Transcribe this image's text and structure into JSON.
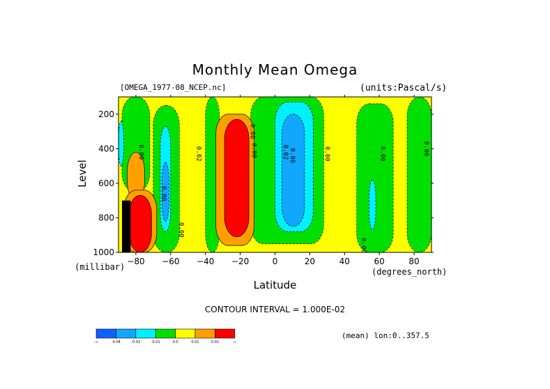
{
  "chart_data": {
    "type": "heatmap",
    "title": "Monthly Mean Omega",
    "file_label": "[OMEGA_1977-08_NCEP.nc]",
    "units_label": "(units:Pascal/s)",
    "xlabel": "Latitude",
    "x_units": "(degrees_north)",
    "ylabel": "Level",
    "y_units": "(millibar)",
    "xlim": [
      -90,
      90
    ],
    "ylim": [
      1000,
      100
    ],
    "x_ticks": [
      -80,
      -60,
      -40,
      -20,
      0,
      20,
      40,
      60,
      80
    ],
    "y_ticks": [
      200,
      400,
      600,
      800,
      1000
    ],
    "contour_interval": "CONTOUR INTERVAL = 1.000E-02",
    "mean_label": "(mean) lon:0..357.5",
    "colorbar": {
      "labels": [
        "-∞",
        "-0.04",
        "-0.02",
        "-0.01",
        "0.0",
        "0.01",
        "0.02",
        "∞"
      ],
      "colors": [
        "#1060ff",
        "#10a8ff",
        "#00f0ff",
        "#00e000",
        "#ffff00",
        "#ffa000",
        "#ff0000"
      ]
    },
    "contour_labels": [
      "0.00",
      "0.00",
      "0.02",
      "0.00",
      "0.00",
      "0.00",
      "0.02",
      "0.00",
      "0.00",
      "0.00",
      "0.00",
      "0.00"
    ],
    "regions": [
      {
        "value": 0.0,
        "lat": [
          -90,
          90
        ],
        "lev": [
          100,
          1000
        ]
      },
      {
        "value": -0.005,
        "lat": [
          -88,
          -72
        ],
        "lev": [
          100,
          650
        ]
      },
      {
        "value": -0.005,
        "lat": [
          -70,
          -55
        ],
        "lev": [
          150,
          1000
        ]
      },
      {
        "value": -0.005,
        "lat": [
          -40,
          -32
        ],
        "lev": [
          100,
          1000
        ]
      },
      {
        "value": -0.005,
        "lat": [
          -14,
          28
        ],
        "lev": [
          100,
          950
        ]
      },
      {
        "value": -0.005,
        "lat": [
          47,
          68
        ],
        "lev": [
          140,
          1000
        ]
      },
      {
        "value": -0.005,
        "lat": [
          76,
          90
        ],
        "lev": [
          100,
          1000
        ]
      },
      {
        "value": -0.015,
        "lat": [
          -66,
          -60
        ],
        "lev": [
          270,
          880
        ]
      },
      {
        "value": -0.015,
        "lat": [
          0,
          22
        ],
        "lev": [
          130,
          880
        ]
      },
      {
        "value": -0.015,
        "lat": [
          -90,
          -87
        ],
        "lev": [
          240,
          500
        ]
      },
      {
        "value": -0.015,
        "lat": [
          54,
          58
        ],
        "lev": [
          580,
          870
        ]
      },
      {
        "value": -0.03,
        "lat": [
          -65,
          -61
        ],
        "lev": [
          480,
          820
        ]
      },
      {
        "value": -0.03,
        "lat": [
          4,
          17
        ],
        "lev": [
          200,
          850
        ]
      },
      {
        "value": 0.015,
        "lat": [
          -34,
          -12
        ],
        "lev": [
          200,
          960
        ]
      },
      {
        "value": 0.015,
        "lat": [
          -85,
          -75
        ],
        "lev": [
          420,
          700
        ]
      },
      {
        "value": 0.015,
        "lat": [
          -87,
          -68
        ],
        "lev": [
          640,
          1000
        ]
      },
      {
        "value": 0.03,
        "lat": [
          -29,
          -15
        ],
        "lev": [
          230,
          910
        ]
      },
      {
        "value": 0.03,
        "lat": [
          -84,
          -71
        ],
        "lev": [
          670,
          1000
        ]
      }
    ],
    "missing": {
      "lat": [
        -88,
        -83
      ],
      "lev": [
        700,
        1000
      ]
    }
  }
}
